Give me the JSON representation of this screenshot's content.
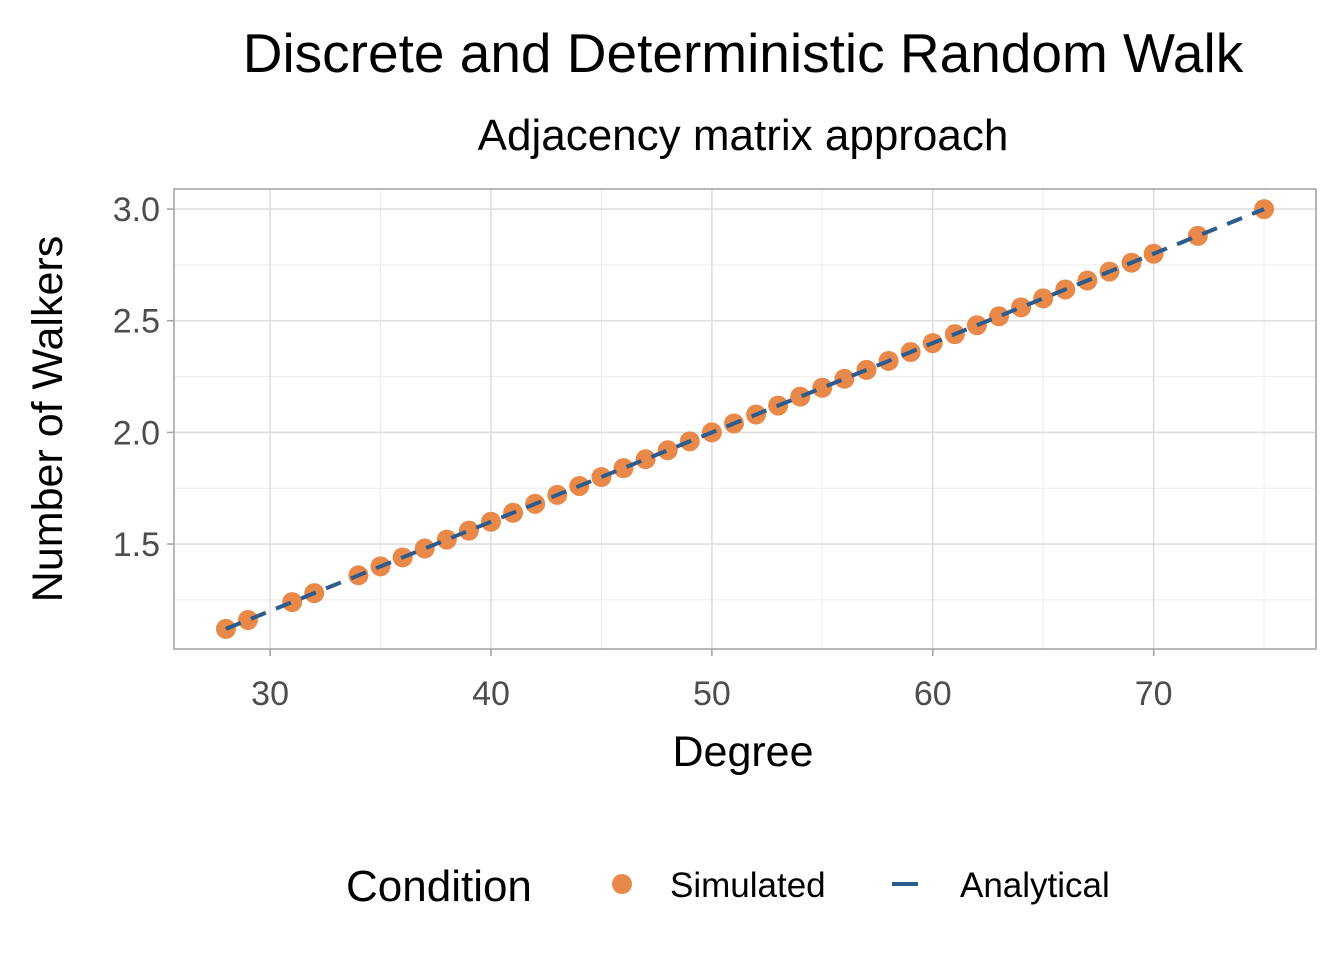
{
  "chart_data": {
    "type": "scatter",
    "title": "Discrete and Deterministic Random Walk",
    "subtitle": "Adjacency matrix approach",
    "xlabel": "Degree",
    "ylabel": "Number of Walkers",
    "xlim": [
      25.65,
      77.35
    ],
    "ylim": [
      1.03,
      3.09
    ],
    "x_ticks": [
      30,
      40,
      50,
      60,
      70
    ],
    "y_ticks": [
      1.5,
      2.0,
      2.5,
      3.0
    ],
    "x_tick_labels": [
      "30",
      "40",
      "50",
      "60",
      "70"
    ],
    "y_tick_labels": [
      "1.5",
      "2.0",
      "2.5",
      "3.0"
    ],
    "grid": true,
    "legend": {
      "title": "Condition",
      "position": "bottom",
      "entries": [
        "Simulated",
        "Analytical"
      ]
    },
    "colors": {
      "simulated": "#E8894A",
      "analytical": "#2D5B8C"
    },
    "series": [
      {
        "name": "Simulated",
        "kind": "points",
        "x": [
          28,
          29,
          31,
          32,
          34,
          35,
          36,
          37,
          38,
          39,
          40,
          41,
          42,
          43,
          44,
          45,
          46,
          47,
          48,
          49,
          50,
          51,
          52,
          53,
          54,
          55,
          56,
          57,
          58,
          59,
          60,
          61,
          62,
          63,
          64,
          65,
          66,
          67,
          68,
          69,
          70,
          72,
          75
        ],
        "y": [
          1.12,
          1.16,
          1.24,
          1.28,
          1.36,
          1.4,
          1.44,
          1.48,
          1.52,
          1.56,
          1.6,
          1.64,
          1.68,
          1.72,
          1.76,
          1.8,
          1.84,
          1.88,
          1.92,
          1.96,
          2.0,
          2.04,
          2.08,
          2.12,
          2.16,
          2.2,
          2.24,
          2.28,
          2.32,
          2.36,
          2.4,
          2.44,
          2.48,
          2.52,
          2.56,
          2.6,
          2.64,
          2.68,
          2.72,
          2.76,
          2.8,
          2.88,
          3.0
        ]
      },
      {
        "name": "Analytical",
        "kind": "dashed-line",
        "x": [
          28,
          75
        ],
        "y": [
          1.12,
          3.0
        ]
      }
    ]
  }
}
